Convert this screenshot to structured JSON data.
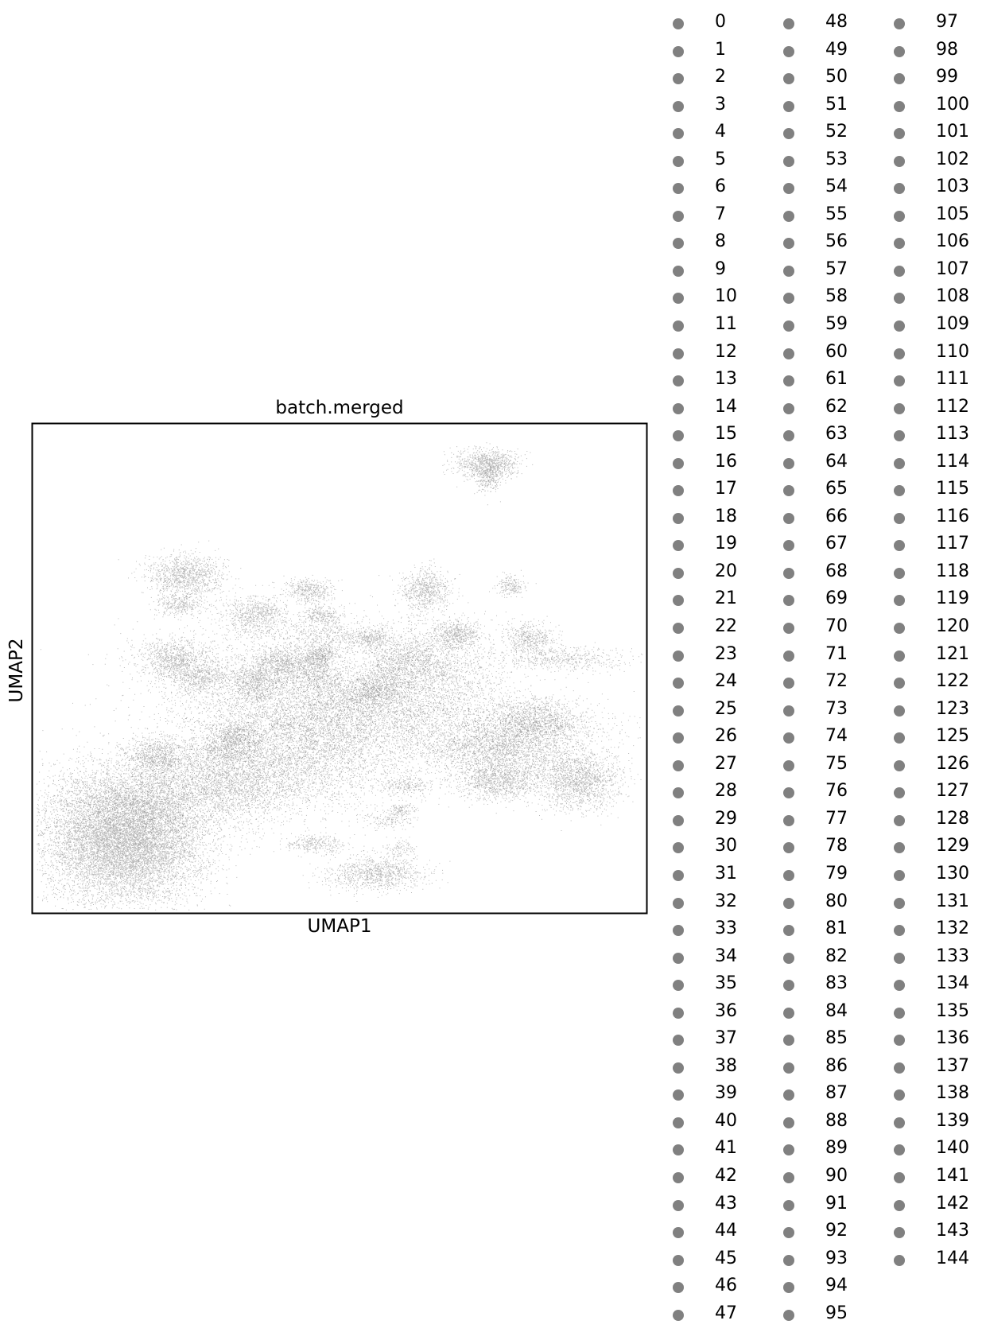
{
  "chart_data": {
    "type": "scatter",
    "title": "batch.merged",
    "xlabel": "UMAP1",
    "ylabel": "UMAP2",
    "xlim": [
      0,
      100
    ],
    "ylim": [
      0,
      100
    ],
    "ticks": "none",
    "grid": false,
    "point_color": "#808080",
    "legend": {
      "placement": "right, outside plot",
      "columns": 3,
      "marker_color": "#808080",
      "entries": [
        "0",
        "1",
        "2",
        "3",
        "4",
        "5",
        "6",
        "7",
        "8",
        "9",
        "10",
        "11",
        "12",
        "13",
        "14",
        "15",
        "16",
        "17",
        "18",
        "19",
        "20",
        "21",
        "22",
        "23",
        "24",
        "25",
        "26",
        "27",
        "28",
        "29",
        "30",
        "31",
        "32",
        "33",
        "34",
        "35",
        "36",
        "37",
        "38",
        "39",
        "40",
        "41",
        "42",
        "43",
        "44",
        "45",
        "46",
        "47",
        "48",
        "49",
        "50",
        "51",
        "52",
        "53",
        "54",
        "55",
        "56",
        "57",
        "58",
        "59",
        "60",
        "61",
        "62",
        "63",
        "64",
        "65",
        "66",
        "67",
        "68",
        "69",
        "70",
        "71",
        "72",
        "73",
        "74",
        "75",
        "76",
        "77",
        "78",
        "79",
        "80",
        "81",
        "82",
        "83",
        "84",
        "85",
        "86",
        "87",
        "88",
        "89",
        "90",
        "91",
        "92",
        "93",
        "94",
        "95",
        "97",
        "98",
        "99",
        "100",
        "101",
        "102",
        "103",
        "105",
        "106",
        "107",
        "108",
        "109",
        "110",
        "111",
        "112",
        "113",
        "114",
        "115",
        "116",
        "117",
        "118",
        "119",
        "120",
        "121",
        "122",
        "123",
        "125",
        "126",
        "127",
        "128",
        "129",
        "130",
        "131",
        "132",
        "133",
        "134",
        "135",
        "136",
        "137",
        "138",
        "139",
        "140",
        "141",
        "142",
        "143",
        "144"
      ]
    },
    "clusters": [
      {
        "x": 15,
        "y": 14,
        "sx": 6.5,
        "sy": 6.0,
        "n": 9000
      },
      {
        "x": 17,
        "y": 23,
        "sx": 8.0,
        "sy": 5.0,
        "n": 3000
      },
      {
        "x": 20,
        "y": 32,
        "sx": 2.5,
        "sy": 2.0,
        "n": 700
      },
      {
        "x": 32,
        "y": 34,
        "sx": 3.0,
        "sy": 2.0,
        "n": 600
      },
      {
        "x": 32,
        "y": 27,
        "sx": 7.0,
        "sy": 4.0,
        "n": 2500
      },
      {
        "x": 45,
        "y": 33,
        "sx": 9.0,
        "sy": 6.0,
        "n": 3500
      },
      {
        "x": 40,
        "y": 46,
        "sx": 10.0,
        "sy": 7.0,
        "n": 3000
      },
      {
        "x": 60,
        "y": 40,
        "sx": 13.0,
        "sy": 4.0,
        "n": 2800
      },
      {
        "x": 76,
        "y": 33,
        "sx": 6.5,
        "sy": 3.0,
        "n": 2200
      },
      {
        "x": 76,
        "y": 27,
        "sx": 3.5,
        "sy": 2.0,
        "n": 1000
      },
      {
        "x": 89,
        "y": 27,
        "sx": 3.5,
        "sy": 3.0,
        "n": 1600
      },
      {
        "x": 82,
        "y": 38,
        "sx": 6.0,
        "sy": 2.0,
        "n": 700
      },
      {
        "x": 82,
        "y": 40,
        "sx": 3.5,
        "sy": 2.0,
        "n": 800
      },
      {
        "x": 87,
        "y": 52,
        "sx": 5.0,
        "sy": 1.2,
        "n": 500
      },
      {
        "x": 81,
        "y": 56,
        "sx": 2.0,
        "sy": 1.7,
        "n": 500
      },
      {
        "x": 69,
        "y": 57,
        "sx": 2.0,
        "sy": 1.4,
        "n": 500
      },
      {
        "x": 65,
        "y": 50,
        "sx": 6.0,
        "sy": 5.0,
        "n": 1800
      },
      {
        "x": 61,
        "y": 52,
        "sx": 3.0,
        "sy": 2.0,
        "n": 500
      },
      {
        "x": 57,
        "y": 47,
        "sx": 3.0,
        "sy": 2.0,
        "n": 500
      },
      {
        "x": 55,
        "y": 56,
        "sx": 1.8,
        "sy": 1.0,
        "n": 300
      },
      {
        "x": 48,
        "y": 57,
        "sx": 4.0,
        "sy": 2.0,
        "n": 400
      },
      {
        "x": 64,
        "y": 66,
        "sx": 2.0,
        "sy": 2.2,
        "n": 700
      },
      {
        "x": 78,
        "y": 67,
        "sx": 1.2,
        "sy": 1.0,
        "n": 200
      },
      {
        "x": 74,
        "y": 92,
        "sx": 2.5,
        "sy": 1.5,
        "n": 900
      },
      {
        "x": 74,
        "y": 89,
        "sx": 1.2,
        "sy": 1.6,
        "n": 250
      },
      {
        "x": 25,
        "y": 69,
        "sx": 3.0,
        "sy": 2.2,
        "n": 1100
      },
      {
        "x": 24,
        "y": 63,
        "sx": 2.0,
        "sy": 1.2,
        "n": 300
      },
      {
        "x": 36,
        "y": 61,
        "sx": 2.8,
        "sy": 2.0,
        "n": 700
      },
      {
        "x": 45,
        "y": 66,
        "sx": 1.8,
        "sy": 1.2,
        "n": 400
      },
      {
        "x": 47,
        "y": 61,
        "sx": 1.6,
        "sy": 1.0,
        "n": 250
      },
      {
        "x": 23,
        "y": 52,
        "sx": 3.0,
        "sy": 2.0,
        "n": 900
      },
      {
        "x": 27,
        "y": 48,
        "sx": 2.5,
        "sy": 1.6,
        "n": 500
      },
      {
        "x": 40,
        "y": 51,
        "sx": 2.2,
        "sy": 2.0,
        "n": 600
      },
      {
        "x": 36,
        "y": 47,
        "sx": 2.0,
        "sy": 1.8,
        "n": 500
      },
      {
        "x": 46,
        "y": 50,
        "sx": 2.0,
        "sy": 2.2,
        "n": 600
      },
      {
        "x": 47,
        "y": 53,
        "sx": 1.2,
        "sy": 1.0,
        "n": 200
      },
      {
        "x": 51,
        "y": 44,
        "sx": 4.0,
        "sy": 2.0,
        "n": 400
      },
      {
        "x": 56,
        "y": 45,
        "sx": 2.0,
        "sy": 1.0,
        "n": 250
      },
      {
        "x": 33,
        "y": 37,
        "sx": 2.0,
        "sy": 1.2,
        "n": 250
      },
      {
        "x": 61,
        "y": 26,
        "sx": 2.0,
        "sy": 1.0,
        "n": 200
      },
      {
        "x": 60,
        "y": 21,
        "sx": 1.0,
        "sy": 0.7,
        "n": 120
      },
      {
        "x": 56,
        "y": 8,
        "sx": 4.0,
        "sy": 1.8,
        "n": 1000
      },
      {
        "x": 46,
        "y": 14,
        "sx": 2.5,
        "sy": 1.0,
        "n": 300
      },
      {
        "x": 58,
        "y": 19,
        "sx": 2.0,
        "sy": 1.0,
        "n": 150
      },
      {
        "x": 60,
        "y": 13,
        "sx": 1.5,
        "sy": 1.0,
        "n": 100
      }
    ]
  }
}
